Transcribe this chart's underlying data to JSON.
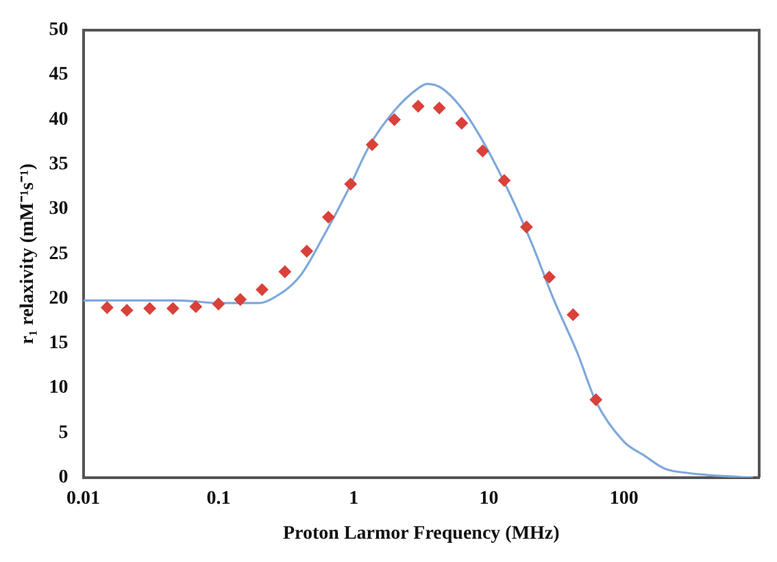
{
  "chart_data": {
    "type": "scatter",
    "xlabel": "Proton Larmor Frequency (MHz)",
    "ylabel": "r₁ relaxivity (mM⁻¹s⁻¹)",
    "log": "x",
    "grid": false,
    "legend": false,
    "xlim": [
      0.01,
      1000
    ],
    "xticks": [
      0.01,
      0.1,
      1,
      10,
      100
    ],
    "ylim": [
      0,
      50
    ],
    "yticks": [
      0,
      5,
      10,
      15,
      20,
      25,
      30,
      35,
      40,
      45,
      50
    ],
    "series": [
      {
        "color": "#d9413a",
        "marker": "diamond",
        "x": [
          0.015,
          0.021,
          0.031,
          0.046,
          0.068,
          0.1,
          0.145,
          0.21,
          0.31,
          0.45,
          0.65,
          0.95,
          1.37,
          2,
          3,
          4.3,
          6.3,
          9,
          13,
          19,
          28,
          42,
          62
        ],
        "values": [
          19.0,
          18.7,
          18.9,
          18.9,
          19.1,
          19.4,
          19.9,
          21.0,
          23.0,
          25.3,
          29.1,
          32.8,
          37.2,
          40.0,
          41.5,
          41.3,
          39.6,
          36.5,
          33.2,
          28.0,
          22.4,
          18.2,
          8.7
        ]
      },
      {
        "type": "line",
        "color": "#7fa8dc",
        "marker": "none",
        "line_style": "solid",
        "x": [
          0.01,
          0.03,
          0.05,
          0.1,
          0.2,
          0.25,
          0.4,
          0.6,
          0.9,
          1.3,
          2,
          3,
          3.5,
          4.5,
          6.5,
          9.5,
          14,
          21,
          30,
          45,
          62,
          100,
          140,
          200,
          300,
          500,
          900
        ],
        "values": [
          19.8,
          19.8,
          19.8,
          19.5,
          19.5,
          20,
          22.5,
          27,
          32,
          37,
          41,
          43.5,
          44,
          43.5,
          41,
          37,
          32,
          26,
          20,
          14,
          8.5,
          4,
          2.5,
          1,
          0.5,
          0.2,
          0
        ]
      }
    ]
  }
}
